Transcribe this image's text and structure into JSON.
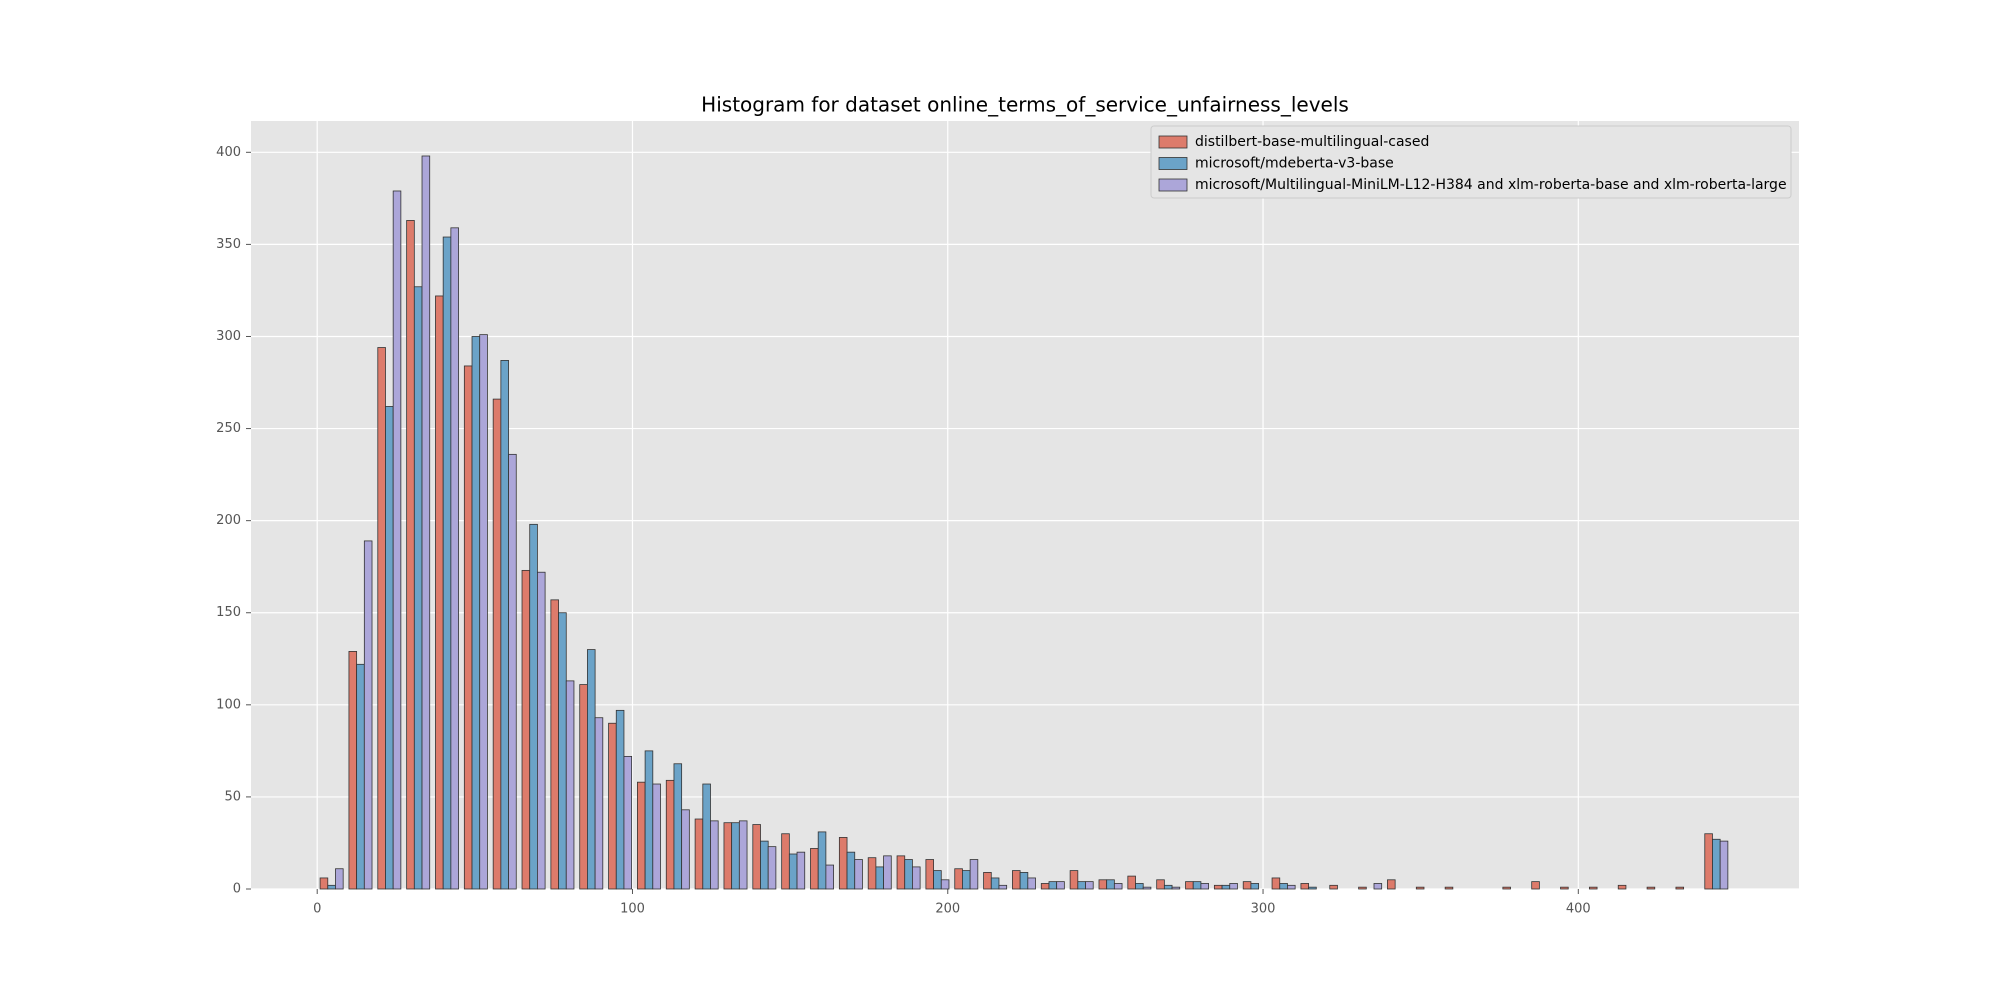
{
  "chart_data": {
    "type": "histogram",
    "title": "Histogram for dataset online_terms_of_service_unfairness_levels",
    "bins": [
      0,
      9.15,
      18.3,
      27.45,
      36.6,
      45.75,
      54.9,
      64.05,
      73.2,
      82.35,
      91.5,
      100.65,
      109.8,
      118.95,
      128.1,
      137.25,
      146.4,
      155.55,
      164.7,
      173.85,
      183,
      192.15,
      201.3,
      210.45,
      219.6,
      228.75,
      237.9,
      247.05,
      256.2,
      265.35,
      274.5,
      283.65,
      292.8,
      301.95,
      311.1,
      320.25,
      329.4,
      338.55,
      347.7,
      356.85,
      366,
      375.15,
      384.3,
      393.45,
      402.6,
      411.75,
      420.9,
      430.05,
      439.2,
      448.35,
      457.5
    ],
    "series": [
      {
        "name": "distilbert-base-multilingual-cased",
        "color": "#dd7b6b",
        "values": [
          6,
          129,
          294,
          363,
          322,
          284,
          266,
          173,
          157,
          111,
          90,
          58,
          59,
          38,
          36,
          35,
          30,
          22,
          28,
          17,
          18,
          16,
          11,
          9,
          10,
          3,
          10,
          5,
          7,
          5,
          4,
          2,
          4,
          6,
          3,
          2,
          1,
          5,
          1,
          1,
          0,
          1,
          4,
          1,
          1,
          2,
          1,
          1,
          30,
          0
        ]
      },
      {
        "name": "microsoft/mdeberta-v3-base",
        "color": "#6ba3c8",
        "values": [
          2,
          122,
          262,
          327,
          354,
          300,
          287,
          198,
          150,
          130,
          97,
          75,
          68,
          57,
          36,
          26,
          19,
          31,
          20,
          12,
          16,
          10,
          10,
          6,
          9,
          4,
          4,
          5,
          3,
          2,
          4,
          2,
          3,
          3,
          1,
          0,
          0,
          0,
          0,
          0,
          0,
          0,
          0,
          0,
          0,
          0,
          0,
          0,
          27,
          0
        ]
      },
      {
        "name": "microsoft/Multilingual-MiniLM-L12-H384 and xlm-roberta-base and xlm-roberta-large",
        "color": "#aca6d9",
        "values": [
          11,
          189,
          379,
          398,
          359,
          301,
          236,
          172,
          113,
          93,
          72,
          57,
          43,
          37,
          37,
          23,
          20,
          13,
          16,
          18,
          12,
          5,
          16,
          2,
          6,
          4,
          4,
          3,
          1,
          1,
          3,
          3,
          0,
          2,
          0,
          0,
          3,
          0,
          0,
          0,
          0,
          0,
          0,
          0,
          0,
          0,
          0,
          0,
          26,
          0
        ]
      }
    ],
    "xlim": [
      -21,
      470
    ],
    "ylim": [
      0,
      417
    ],
    "xticks": [
      0,
      100,
      200,
      300,
      400
    ],
    "yticks": [
      0,
      50,
      100,
      150,
      200,
      250,
      300,
      350,
      400
    ],
    "grid": true,
    "legend": "upper right"
  }
}
